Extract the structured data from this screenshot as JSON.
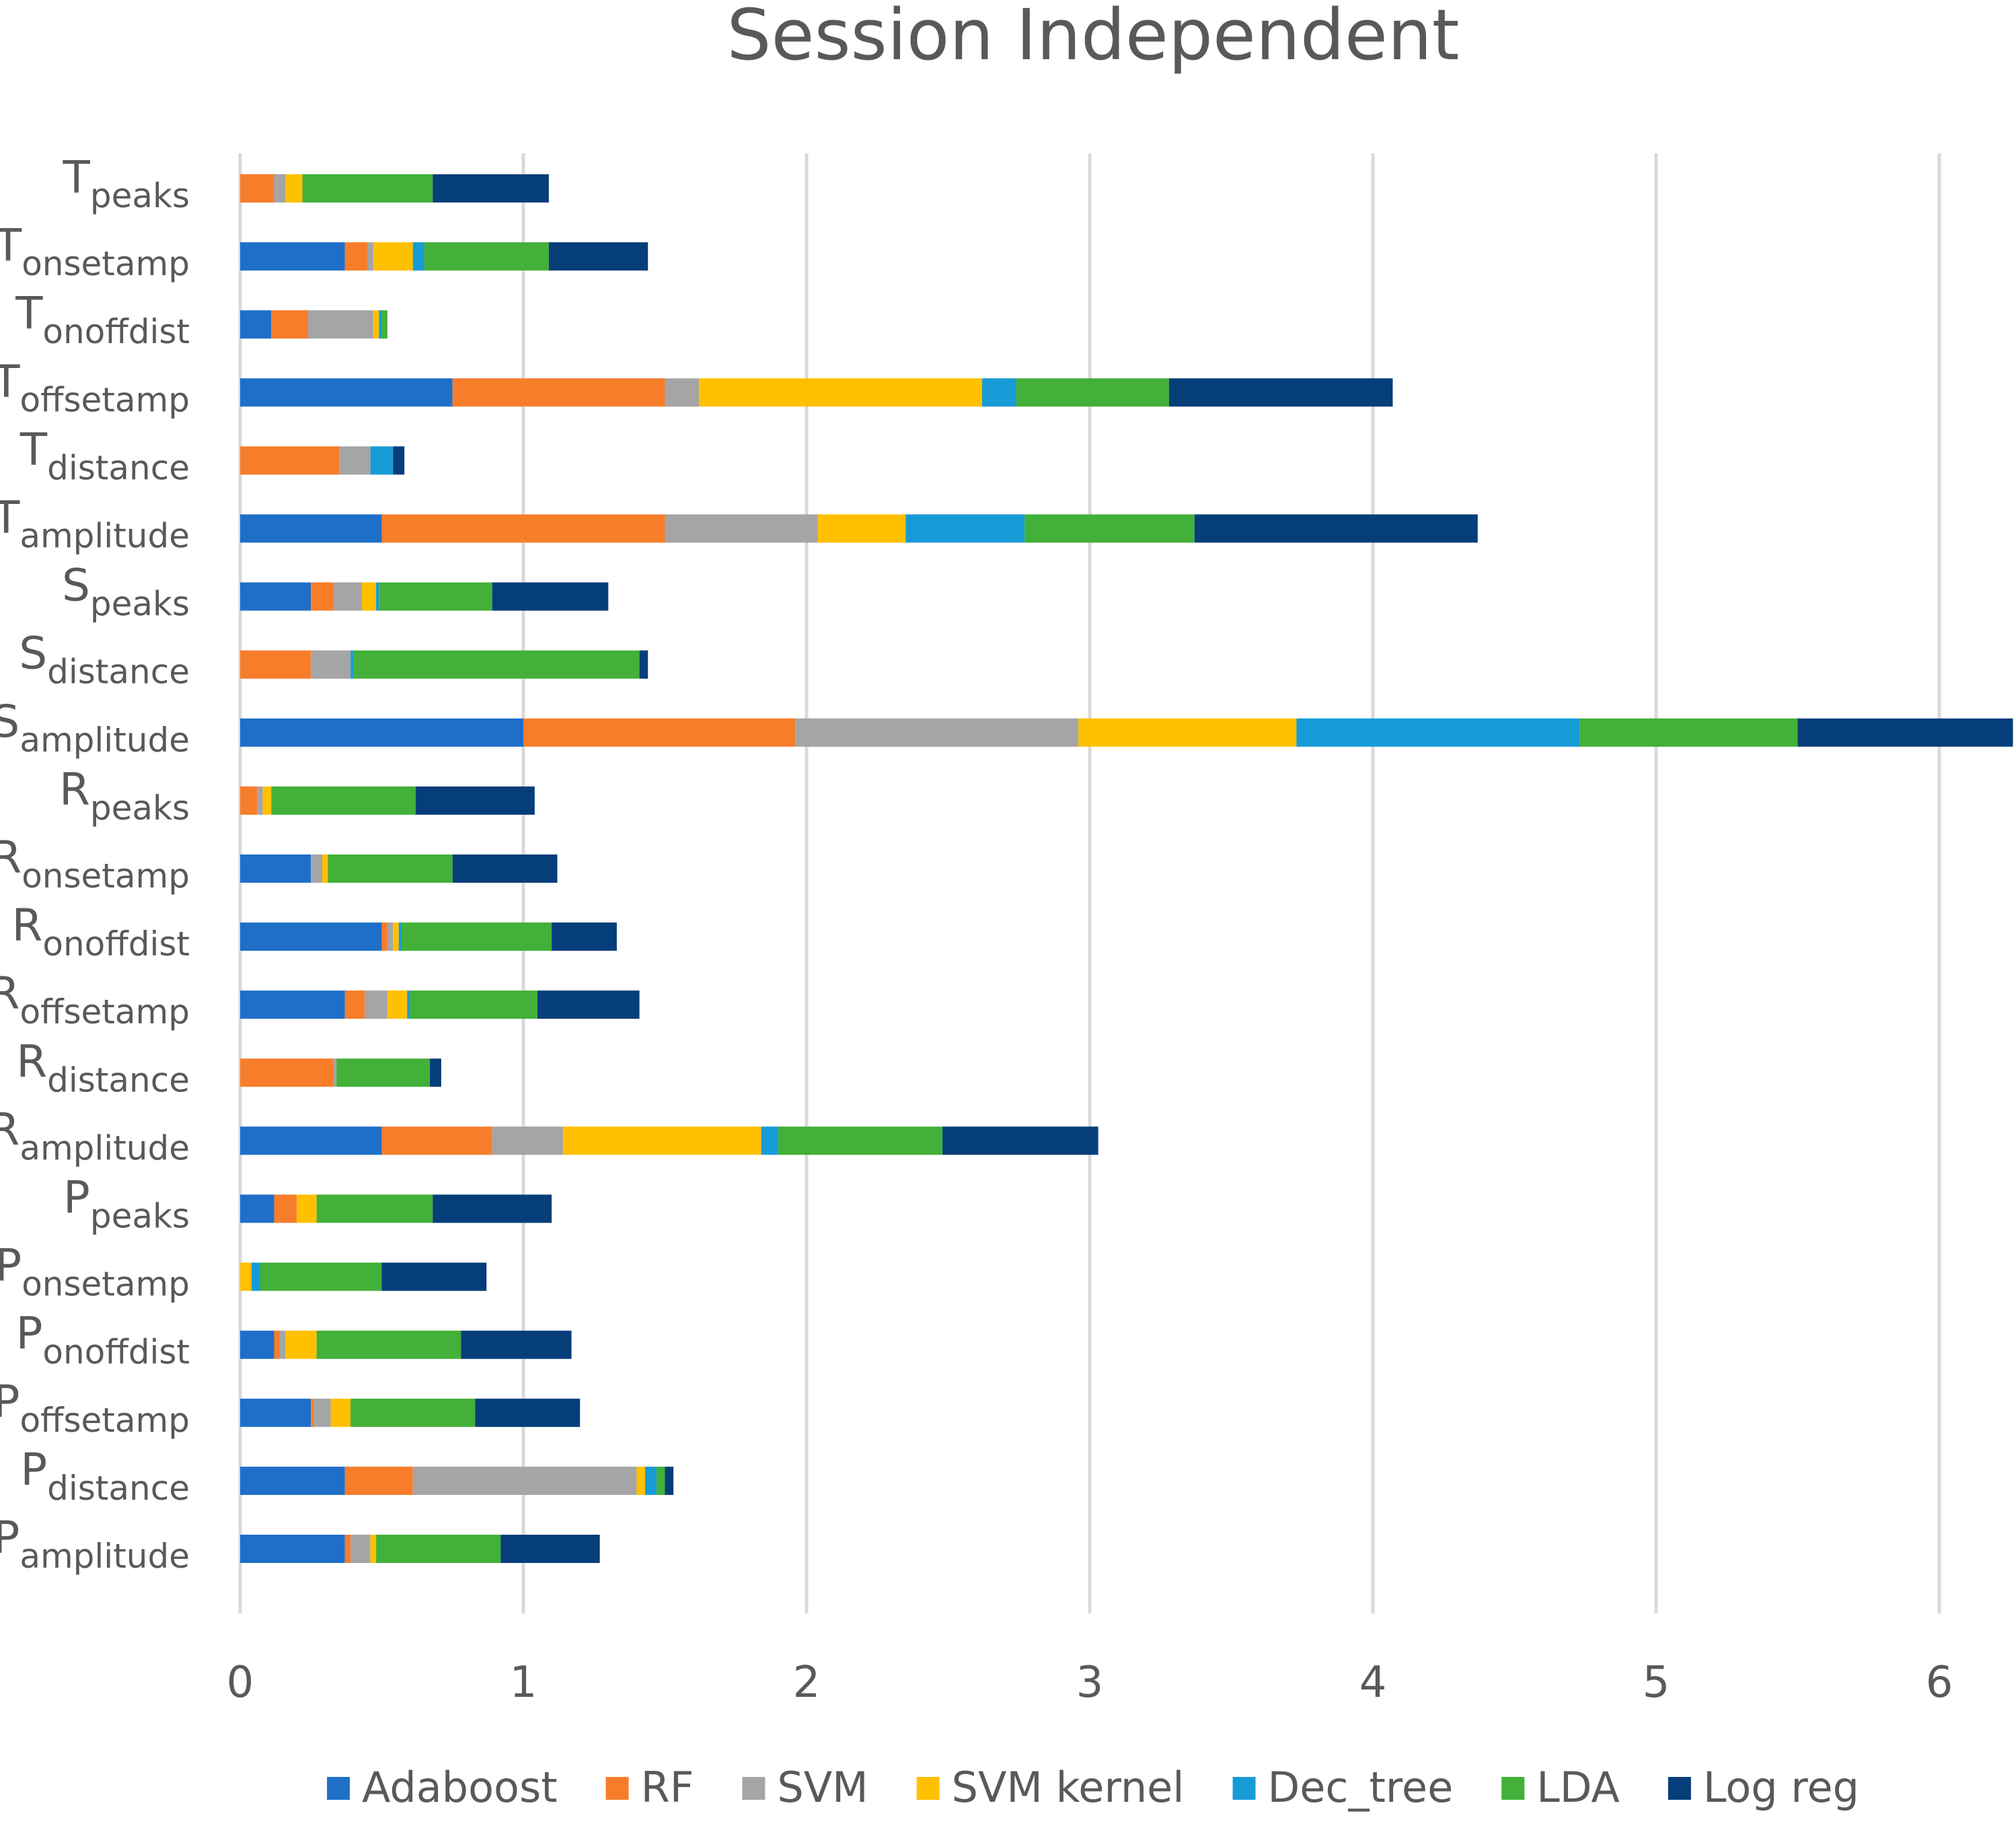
{
  "chart_data": {
    "type": "bar",
    "orientation": "horizontal",
    "stacked": true,
    "title": "Session Independent",
    "xlabel": "",
    "ylabel": "",
    "xlim": [
      0,
      6.25
    ],
    "xticks": [
      0,
      1,
      2,
      3,
      4,
      5,
      6
    ],
    "grid": "vertical",
    "legend_position": "bottom",
    "categories": [
      {
        "main": "T",
        "sub": "peaks"
      },
      {
        "main": "T",
        "sub": "onsetamp"
      },
      {
        "main": "T",
        "sub": "onoffdist"
      },
      {
        "main": "T",
        "sub": "offsetamp"
      },
      {
        "main": "T",
        "sub": "distance"
      },
      {
        "main": "T",
        "sub": "amplitude"
      },
      {
        "main": "S",
        "sub": "peaks"
      },
      {
        "main": "S",
        "sub": "distance"
      },
      {
        "main": "S",
        "sub": "amplitude"
      },
      {
        "main": "R",
        "sub": "peaks"
      },
      {
        "main": "R",
        "sub": "onsetamp"
      },
      {
        "main": "R",
        "sub": "onoffdist"
      },
      {
        "main": "R",
        "sub": "offsetamp"
      },
      {
        "main": "R",
        "sub": "distance"
      },
      {
        "main": "R",
        "sub": "amplitude"
      },
      {
        "main": "P",
        "sub": "peaks"
      },
      {
        "main": "P",
        "sub": "onsetamp"
      },
      {
        "main": "P",
        "sub": "onoffdist"
      },
      {
        "main": "P",
        "sub": "offsetamp"
      },
      {
        "main": "P",
        "sub": "distance"
      },
      {
        "main": "P",
        "sub": "amplitude"
      }
    ],
    "series": [
      {
        "name": "Adaboost",
        "color": "#1f6fc9",
        "values": [
          0,
          0.37,
          0.11,
          0.75,
          0,
          0.5,
          0.25,
          0,
          1.0,
          0,
          0.25,
          0.5,
          0.37,
          0,
          0.5,
          0.12,
          0,
          0.12,
          0.25,
          0.37,
          0.37
        ]
      },
      {
        "name": "RF",
        "color": "#f77d2b",
        "values": [
          0.12,
          0.08,
          0.13,
          0.75,
          0.35,
          1.0,
          0.08,
          0.25,
          0.96,
          0.06,
          0,
          0.02,
          0.07,
          0.33,
          0.39,
          0.08,
          0,
          0.02,
          0.01,
          0.24,
          0.02
        ]
      },
      {
        "name": "SVM",
        "color": "#a5a5a5",
        "values": [
          0.04,
          0.02,
          0.23,
          0.12,
          0.11,
          0.54,
          0.1,
          0.14,
          1.0,
          0.02,
          0.04,
          0.02,
          0.08,
          0.01,
          0.25,
          0,
          0,
          0.02,
          0.06,
          0.79,
          0.07
        ]
      },
      {
        "name": "SVM kernel",
        "color": "#ffc000",
        "values": [
          0.06,
          0.14,
          0.02,
          1.0,
          0,
          0.31,
          0.05,
          0,
          0.77,
          0.03,
          0.02,
          0.02,
          0.07,
          0,
          0.7,
          0.07,
          0.04,
          0.11,
          0.07,
          0.03,
          0.02
        ]
      },
      {
        "name": "Dec_tree",
        "color": "#179bd7",
        "values": [
          0,
          0.04,
          0.01,
          0.12,
          0.08,
          0.42,
          0.01,
          0.01,
          1.0,
          0,
          0,
          0.01,
          0.01,
          0,
          0.06,
          0,
          0.03,
          0,
          0,
          0.04,
          0
        ]
      },
      {
        "name": "LDA",
        "color": "#42b039",
        "values": [
          0.46,
          0.44,
          0.02,
          0.54,
          0,
          0.6,
          0.4,
          1.01,
          0.77,
          0.51,
          0.44,
          0.53,
          0.45,
          0.33,
          0.58,
          0.41,
          0.43,
          0.51,
          0.44,
          0.03,
          0.44
        ]
      },
      {
        "name": "Log reg",
        "color": "#063e7a",
        "values": [
          0.41,
          0.35,
          0,
          0.79,
          0.04,
          1.0,
          0.41,
          0.03,
          0.76,
          0.42,
          0.37,
          0.23,
          0.36,
          0.04,
          0.55,
          0.42,
          0.37,
          0.39,
          0.37,
          0.03,
          0.35
        ]
      }
    ]
  }
}
